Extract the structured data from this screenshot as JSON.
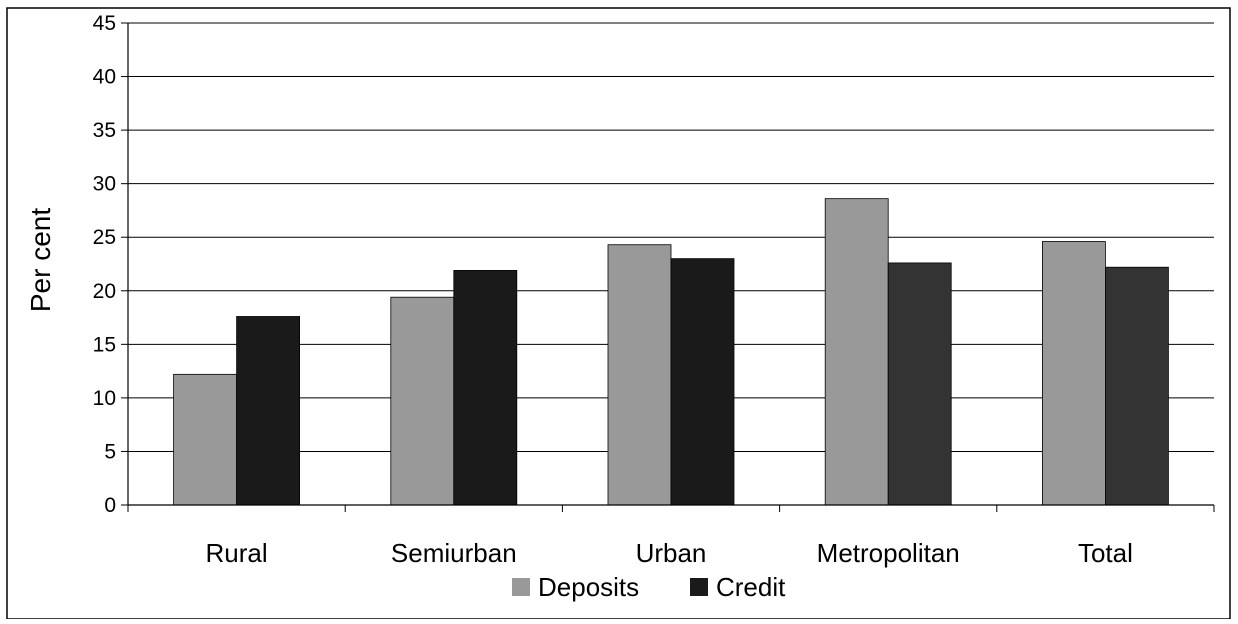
{
  "chart_data": {
    "type": "bar",
    "title": "",
    "xlabel": "",
    "ylabel": "Per cent",
    "ylim": [
      0,
      45
    ],
    "ytick_step": 5,
    "grid": true,
    "legend_position": "bottom",
    "categories": [
      "Rural",
      "Semiurban",
      "Urban",
      "Metropolitan",
      "Total"
    ],
    "series": [
      {
        "name": "Deposits",
        "color": "#999999",
        "values": [
          12.2,
          19.4,
          24.3,
          28.6,
          24.6
        ]
      },
      {
        "name": "Credit",
        "colors": [
          "#1a1a1a",
          "#1a1a1a",
          "#1a1a1a",
          "#333333",
          "#333333"
        ],
        "legend_color": "#1a1a1a",
        "values": [
          17.6,
          21.9,
          23.0,
          22.6,
          22.2
        ]
      }
    ]
  }
}
